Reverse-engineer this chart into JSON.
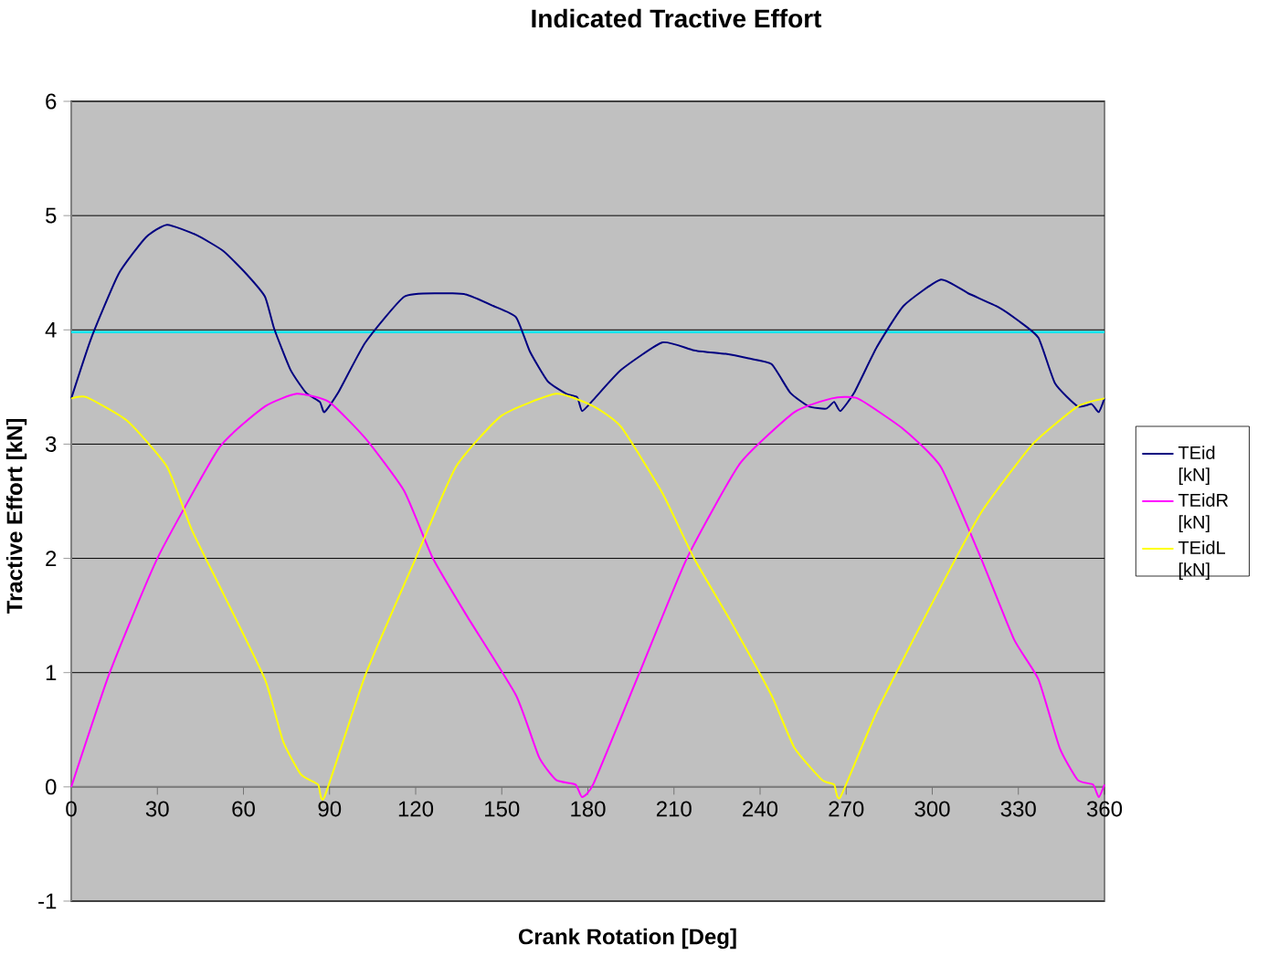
{
  "chart_data": {
    "type": "line",
    "title": "Indicated Tractive Effort",
    "xlabel": "Crank Rotation [Deg]",
    "ylabel": "Tractive Effort [kN]",
    "xlim": [
      0,
      360
    ],
    "xticks": [
      0,
      30,
      60,
      90,
      120,
      150,
      180,
      210,
      240,
      270,
      300,
      330,
      360
    ],
    "ylim": [
      -1,
      6
    ],
    "yticks": [
      -1,
      0,
      1,
      2,
      3,
      4,
      5,
      6
    ],
    "grid": "y",
    "legend": "right",
    "marker": "none",
    "line_style": "solid",
    "ref_lines": [
      {
        "axis": "y",
        "value": 3.98,
        "color": "#00e5ee"
      }
    ],
    "series": [
      {
        "name": "TEid [kN]",
        "color": "#000080",
        "x": [
          0,
          7,
          16.5,
          26,
          33.4,
          43.6,
          53,
          61,
          67.5,
          70.7,
          76.4,
          81.8,
          86.6,
          88.2,
          93,
          102.5,
          116,
          128,
          137.5,
          147,
          155,
          159.8,
          166,
          172.5,
          176.3,
          178,
          182,
          191.6,
          206,
          217,
          228,
          236,
          244,
          250.5,
          257,
          263,
          265.8,
          268,
          272.8,
          280.7,
          290,
          303,
          312.5,
          323,
          330,
          337,
          342.8,
          350.7,
          355.5,
          358,
          360
        ],
        "values": [
          3.4,
          3.93,
          4.49,
          4.81,
          4.92,
          4.83,
          4.69,
          4.49,
          4.29,
          4.01,
          3.65,
          3.45,
          3.37,
          3.28,
          3.45,
          3.89,
          4.29,
          4.32,
          4.31,
          4.21,
          4.11,
          3.81,
          3.55,
          3.44,
          3.41,
          3.29,
          3.39,
          3.65,
          3.89,
          3.82,
          3.79,
          3.75,
          3.7,
          3.45,
          3.33,
          3.31,
          3.37,
          3.29,
          3.45,
          3.85,
          4.21,
          4.44,
          4.32,
          4.2,
          4.08,
          3.93,
          3.53,
          3.33,
          3.35,
          3.28,
          3.4
        ]
      },
      {
        "name": "TEidR [kN]",
        "color": "#ff00ff",
        "x": [
          0,
          13.4,
          30,
          51.6,
          67.5,
          78.6,
          89.8,
          102.5,
          116,
          126,
          138,
          155,
          163,
          169,
          175.7,
          178,
          182,
          198,
          214.5,
          233,
          252,
          265,
          274,
          290,
          303,
          317,
          328.5,
          337,
          344.4,
          350.7,
          356,
          358,
          360
        ],
        "values": [
          0,
          1.0,
          2.0,
          2.97,
          3.33,
          3.44,
          3.37,
          3.05,
          2.59,
          2.0,
          1.49,
          0.8,
          0.26,
          0.06,
          0.02,
          -0.09,
          0.03,
          1.0,
          2.0,
          2.83,
          3.28,
          3.4,
          3.4,
          3.13,
          2.8,
          2.0,
          1.29,
          0.94,
          0.34,
          0.06,
          0.02,
          -0.09,
          0.02
        ]
      },
      {
        "name": "TEidL [kN]",
        "color": "#ffff00",
        "x": [
          0,
          5.4,
          19.7,
          33.4,
          42,
          53,
          67.5,
          73.8,
          80,
          86,
          88.2,
          102.5,
          120,
          134,
          150,
          169,
          182,
          191.6,
          206,
          217,
          230,
          244,
          252,
          261.6,
          265.8,
          268,
          280.7,
          300,
          317,
          335,
          350.7,
          360
        ],
        "values": [
          3.4,
          3.41,
          3.2,
          2.8,
          2.25,
          1.69,
          0.94,
          0.4,
          0.11,
          0.02,
          -0.09,
          0.98,
          2.0,
          2.8,
          3.25,
          3.44,
          3.33,
          3.15,
          2.57,
          2.0,
          1.44,
          0.8,
          0.34,
          0.06,
          0.02,
          -0.09,
          0.66,
          1.61,
          2.4,
          3.0,
          3.33,
          3.4
        ]
      }
    ]
  }
}
